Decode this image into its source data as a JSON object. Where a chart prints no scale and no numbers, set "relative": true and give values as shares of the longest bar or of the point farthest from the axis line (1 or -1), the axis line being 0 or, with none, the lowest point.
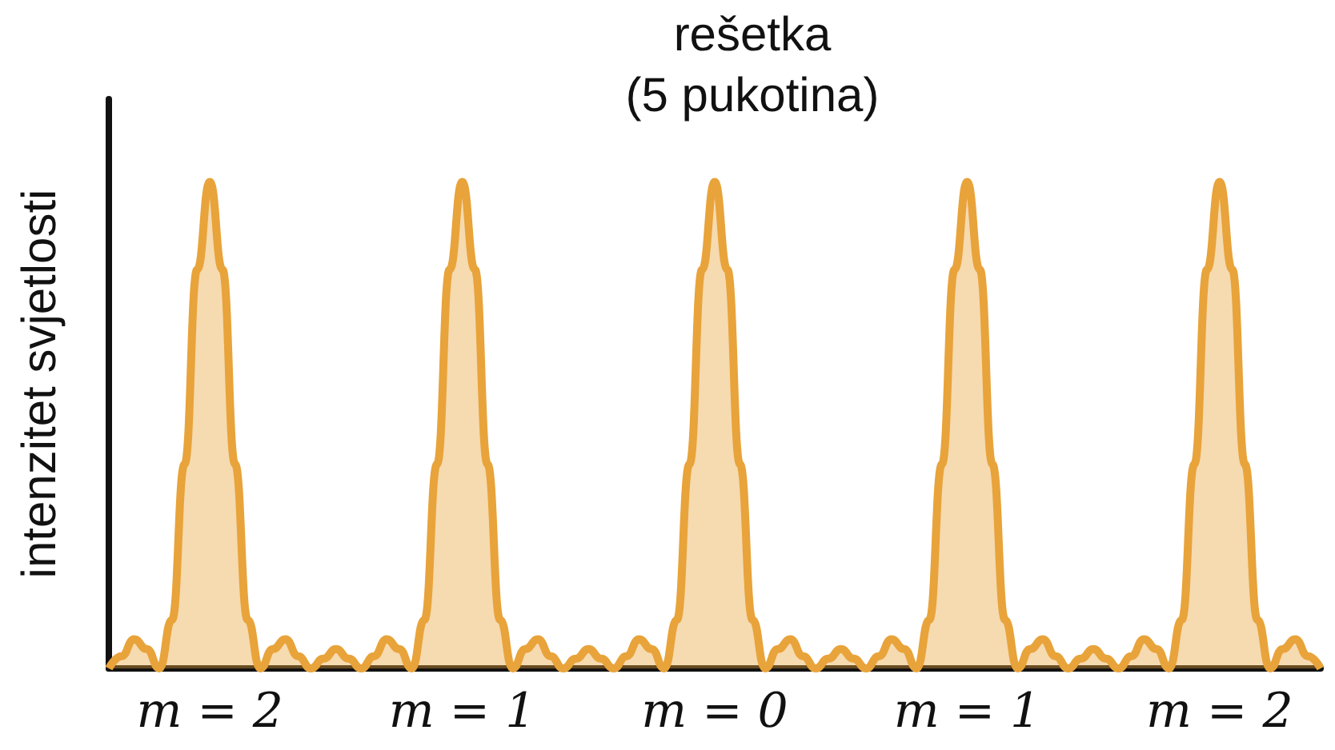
{
  "chart_data": {
    "type": "area",
    "title": "rešetka",
    "subtitle": "(5 pukotina)",
    "ylabel": "intenzitet svjetlosti",
    "relative": true,
    "marker": "none",
    "categories": [
      null,
      null,
      null,
      null,
      null,
      null,
      null,
      null,
      "m = 2",
      null,
      null,
      null,
      null,
      null,
      null,
      null,
      null,
      null,
      null,
      null,
      null,
      null,
      null,
      null,
      null,
      null,
      null,
      null,
      "m = 1",
      null,
      null,
      null,
      null,
      null,
      null,
      null,
      null,
      null,
      null,
      null,
      null,
      null,
      null,
      null,
      null,
      null,
      null,
      null,
      "m = 0",
      null,
      null,
      null,
      null,
      null,
      null,
      null,
      null,
      null,
      null,
      null,
      null,
      null,
      null,
      null,
      null,
      null,
      null,
      null,
      "m = 1",
      null,
      null,
      null,
      null,
      null,
      null,
      null,
      null,
      null,
      null,
      null,
      null,
      null,
      null,
      null,
      null,
      null,
      null,
      null,
      "m = 2",
      null,
      null,
      null,
      null,
      null,
      null,
      null,
      null
    ],
    "series": [
      {
        "color": "#e8a33a",
        "values": [
          0,
          0.025,
          0.06,
          0.04,
          0,
          0.1,
          0.42,
          0.82,
          1,
          0.82,
          0.42,
          0.1,
          0,
          0.04,
          0.06,
          0.025,
          0,
          0.02,
          0.04,
          0.02,
          0,
          0.025,
          0.06,
          0.04,
          0,
          0.1,
          0.42,
          0.82,
          1,
          0.82,
          0.42,
          0.1,
          0,
          0.04,
          0.06,
          0.025,
          0,
          0.02,
          0.04,
          0.02,
          0,
          0.025,
          0.06,
          0.04,
          0,
          0.1,
          0.42,
          0.82,
          1,
          0.82,
          0.42,
          0.1,
          0,
          0.04,
          0.06,
          0.025,
          0,
          0.02,
          0.04,
          0.02,
          0,
          0.025,
          0.06,
          0.04,
          0,
          0.1,
          0.42,
          0.82,
          1,
          0.82,
          0.42,
          0.1,
          0,
          0.04,
          0.06,
          0.025,
          0,
          0.02,
          0.04,
          0.02,
          0,
          0.025,
          0.06,
          0.04,
          0,
          0.1,
          0.42,
          0.82,
          1,
          0.82,
          0.42,
          0.1,
          0,
          0.04,
          0.06,
          0.025,
          0
        ]
      }
    ]
  }
}
